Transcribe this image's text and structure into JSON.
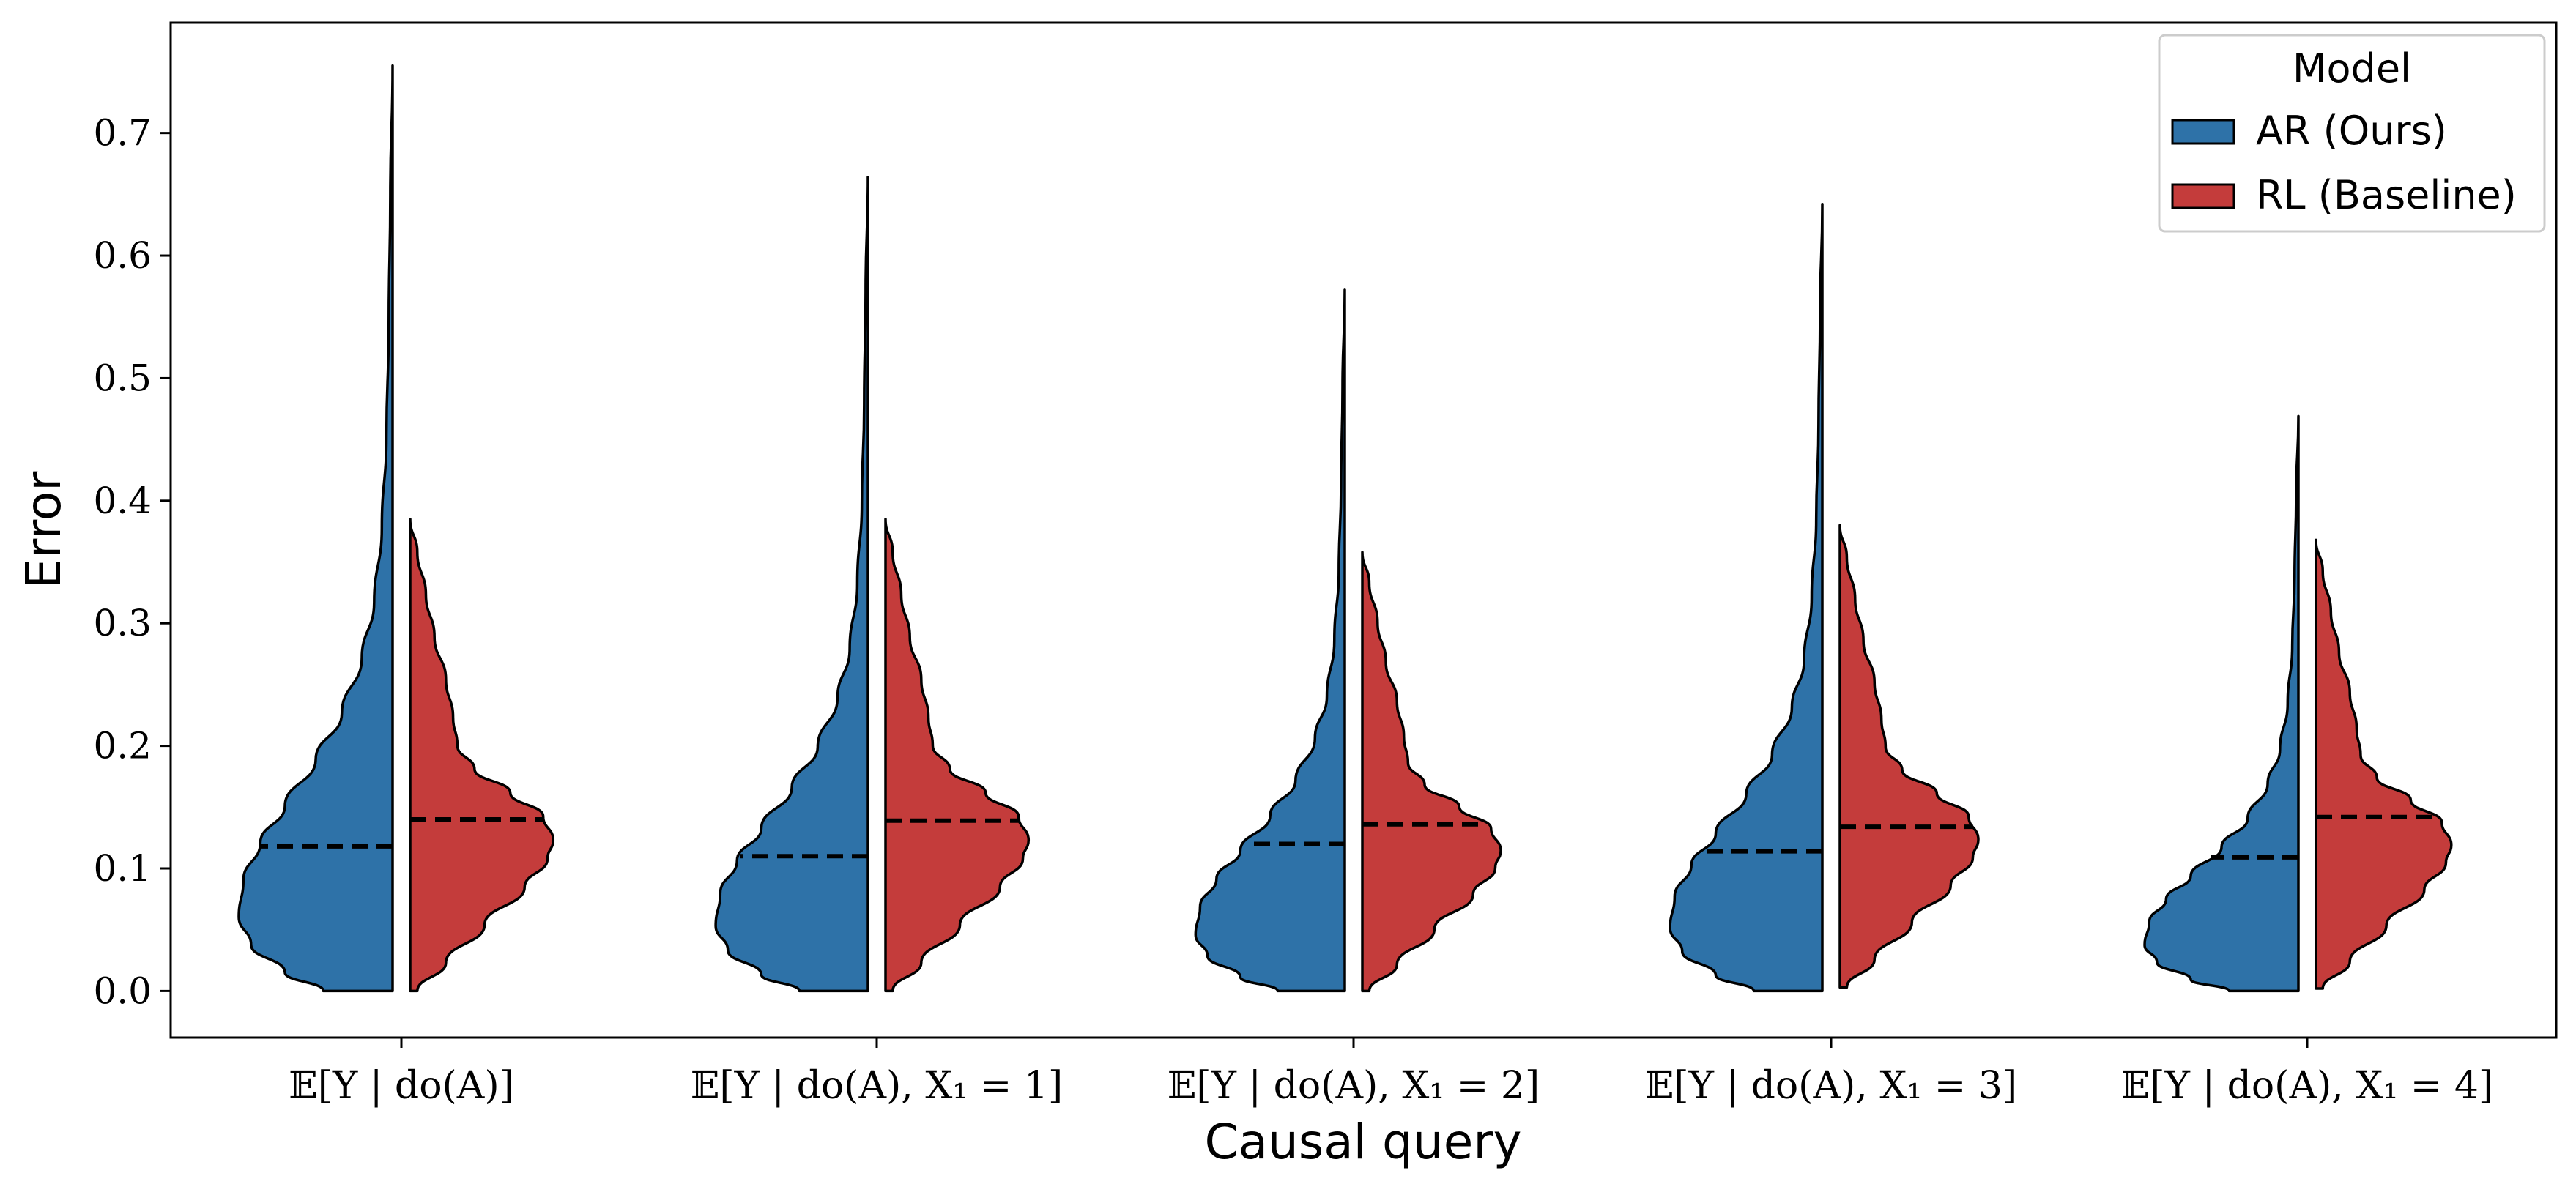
{
  "chart_data": {
    "type": "violin",
    "title": "",
    "xlabel": "Causal query",
    "ylabel": "Error",
    "ylim": [
      -0.038,
      0.79
    ],
    "yticks": [
      0.0,
      0.1,
      0.2,
      0.3,
      0.4,
      0.5,
      0.6,
      0.7
    ],
    "ytick_labels": [
      "0.0",
      "0.1",
      "0.2",
      "0.3",
      "0.4",
      "0.5",
      "0.6",
      "0.7"
    ],
    "grid": false,
    "split": true,
    "legend": {
      "title": "Model",
      "position": "top-right"
    },
    "categories": [
      "𝔼[Y | do(A)]",
      "𝔼[Y | do(A), X₁ = 1]",
      "𝔼[Y | do(A), X₁ = 2]",
      "𝔼[Y | do(A), X₁ = 3]",
      "𝔼[Y | do(A), X₁ = 4]"
    ],
    "series": [
      {
        "name": "AR (Ours)",
        "color": "#2e72a8",
        "side": "left",
        "medians": [
          0.118,
          0.11,
          0.12,
          0.114,
          0.109
        ],
        "mins": [
          0.0,
          0.0,
          0.0,
          0.0,
          0.0
        ],
        "maxs": [
          0.755,
          0.664,
          0.572,
          0.642,
          0.469
        ]
      },
      {
        "name": "RL (Baseline)",
        "color": "#c43c3b",
        "side": "right",
        "medians": [
          0.14,
          0.139,
          0.136,
          0.134,
          0.142
        ],
        "mins": [
          0.0,
          0.0,
          0.0,
          0.003,
          0.002
        ],
        "maxs": [
          0.385,
          0.385,
          0.358,
          0.38,
          0.368
        ]
      }
    ]
  }
}
